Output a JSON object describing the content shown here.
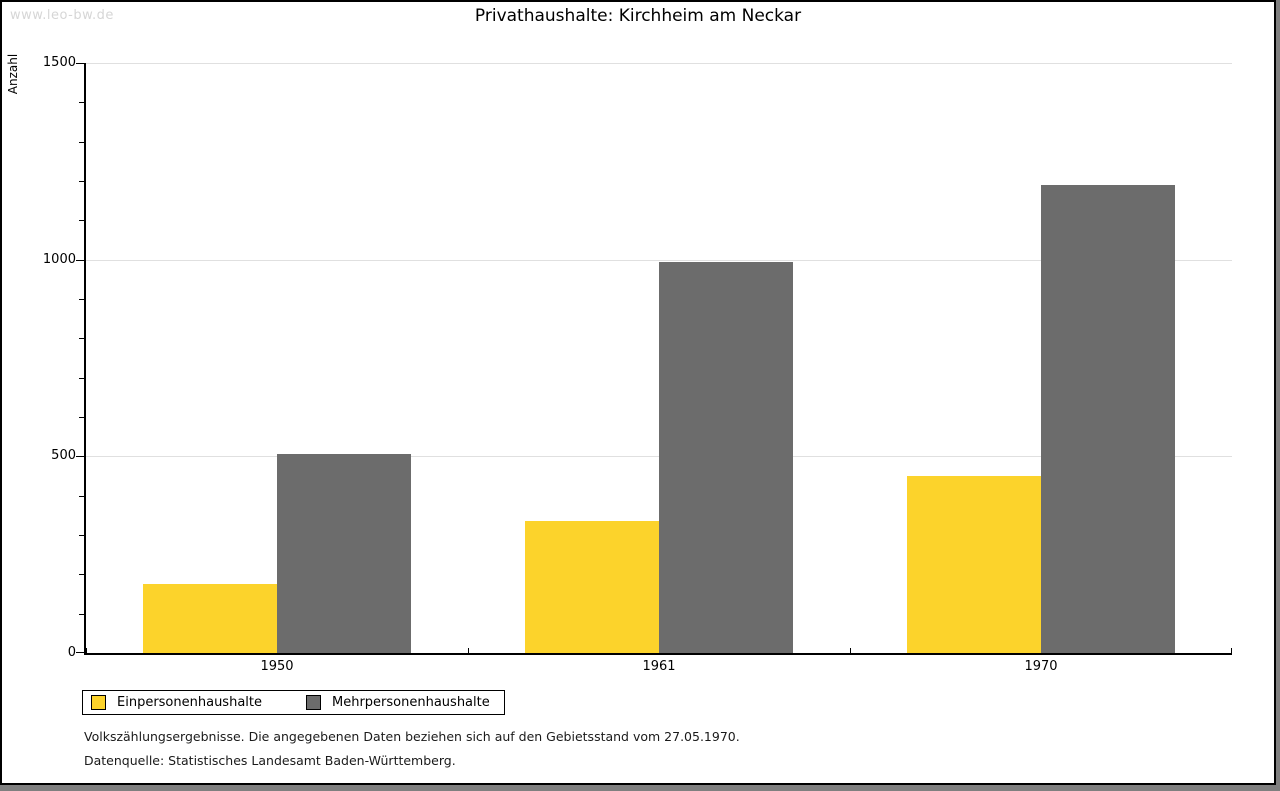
{
  "watermark": "www.leo-bw.de",
  "title": "Privathaushalte: Kirchheim am Neckar",
  "footnotes": {
    "line1": "Volkszählungsergebnisse. Die angegebenen Daten beziehen sich auf den Gebietsstand vom 27.05.1970.",
    "line2": "Datenquelle: Statistisches Landesamt Baden-Württemberg."
  },
  "chart_data": {
    "type": "bar",
    "title": "Privathaushalte: Kirchheim am Neckar",
    "xlabel": "",
    "ylabel": "Anzahl",
    "categories": [
      "1950",
      "1961",
      "1970"
    ],
    "series": [
      {
        "name": "Einpersonenhaushalte",
        "color": "#FCD32B",
        "values": [
          175,
          335,
          450
        ]
      },
      {
        "name": "Mehrpersonenhaushalte",
        "color": "#6C6C6C",
        "values": [
          505,
          995,
          1190
        ]
      }
    ],
    "ylim": [
      0,
      1500
    ],
    "y_major_ticks": [
      0,
      500,
      1000,
      1500
    ],
    "y_minor_step": 100,
    "grid": "horizontal lines at major y ticks",
    "legend_position": "bottom-left"
  },
  "colors": {
    "gridline": "#E0E0E0",
    "axis": "#000000",
    "watermark_text": "#D6D6D6",
    "outer_background": "#7F7F7F",
    "panel_background": "#FFFFFF"
  }
}
